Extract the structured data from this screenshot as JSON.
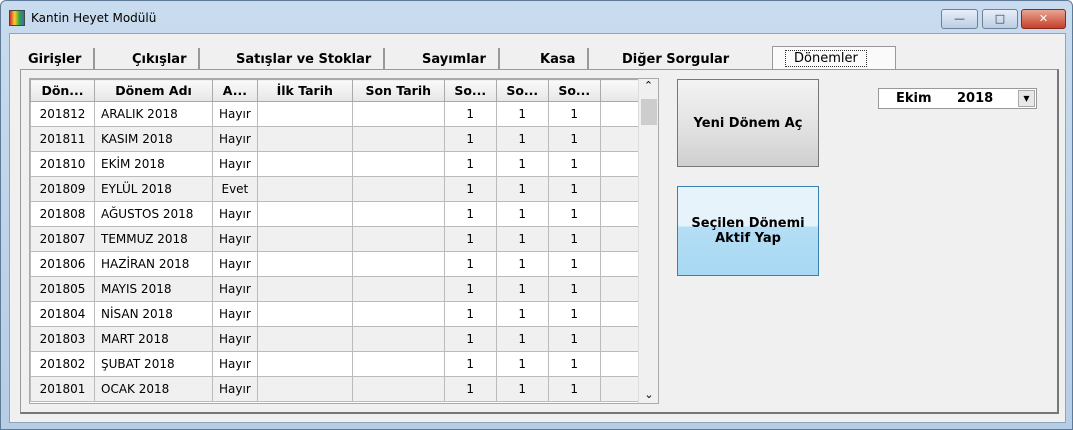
{
  "window": {
    "title": "Kantin Heyet Modülü",
    "minimize": "—",
    "maximize": "□",
    "close": "✕"
  },
  "tabs": [
    "Girişler",
    "Çıkışlar",
    "Satışlar ve Stoklar",
    "Sayımlar",
    "Kasa",
    "Diğer Sorgular",
    "Dönemler"
  ],
  "active_tab": "Dönemler",
  "grid": {
    "columns": [
      "Dön...",
      "Dönem Adı",
      "A...",
      "İlk Tarih",
      "Son Tarih",
      "So...",
      "So...",
      "So..."
    ],
    "rows": [
      [
        "201812",
        "ARALIK 2018",
        "Hayır",
        "",
        "",
        "1",
        "1",
        "1"
      ],
      [
        "201811",
        "KASIM 2018",
        "Hayır",
        "",
        "",
        "1",
        "1",
        "1"
      ],
      [
        "201810",
        "EKİM 2018",
        "Hayır",
        "",
        "",
        "1",
        "1",
        "1"
      ],
      [
        "201809",
        "EYLÜL 2018",
        "Evet",
        "",
        "",
        "1",
        "1",
        "1"
      ],
      [
        "201808",
        "AĞUSTOS 2018",
        "Hayır",
        "",
        "",
        "1",
        "1",
        "1"
      ],
      [
        "201807",
        "TEMMUZ 2018",
        "Hayır",
        "",
        "",
        "1",
        "1",
        "1"
      ],
      [
        "201806",
        "HAZİRAN 2018",
        "Hayır",
        "",
        "",
        "1",
        "1",
        "1"
      ],
      [
        "201805",
        "MAYIS 2018",
        "Hayır",
        "",
        "",
        "1",
        "1",
        "1"
      ],
      [
        "201804",
        "NİSAN 2018",
        "Hayır",
        "",
        "",
        "1",
        "1",
        "1"
      ],
      [
        "201803",
        "MART 2018",
        "Hayır",
        "",
        "",
        "1",
        "1",
        "1"
      ],
      [
        "201802",
        "ŞUBAT 2018",
        "Hayır",
        "",
        "",
        "1",
        "1",
        "1"
      ],
      [
        "201801",
        "OCAK 2018",
        "Hayır",
        "",
        "",
        "1",
        "1",
        "1"
      ]
    ]
  },
  "buttons": {
    "new_period": "Yeni Dönem Aç",
    "activate_line1": "Seçilen Dönemi",
    "activate_line2": "Aktif Yap"
  },
  "period_select": {
    "month": "Ekim",
    "year": "2018"
  }
}
